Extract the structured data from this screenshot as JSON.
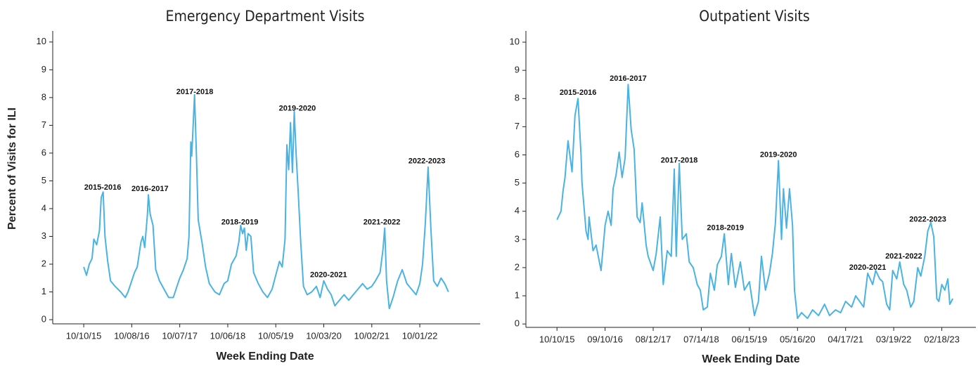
{
  "chart_data": [
    {
      "type": "line",
      "title": "Emergency Department Visits",
      "xlabel": "Week Ending Date",
      "ylabel": "Percent of Visits for ILI",
      "color": "#4ab3e2",
      "x": [
        "10/10/15",
        "10/31/15",
        "11/21/15",
        "12/12/15",
        "12/26/15",
        "01/16/16",
        "02/06/16",
        "02/20/16",
        "03/05/16",
        "03/19/16",
        "04/09/16",
        "04/30/16",
        "06/04/16",
        "07/16/16",
        "08/20/16",
        "09/10/16",
        "10/08/16",
        "10/29/16",
        "11/19/16",
        "12/17/16",
        "12/31/16",
        "01/14/17",
        "02/04/17",
        "02/11/17",
        "02/25/17",
        "03/18/17",
        "04/08/17",
        "05/06/17",
        "06/10/17",
        "07/15/17",
        "08/19/17",
        "09/16/17",
        "10/07/17",
        "11/04/17",
        "12/02/17",
        "12/16/17",
        "12/30/17",
        "01/06/18",
        "01/13/18",
        "01/27/18",
        "02/10/18",
        "02/24/18",
        "03/24/18",
        "04/21/18",
        "05/19/18",
        "06/30/18",
        "08/04/18",
        "09/08/18",
        "10/06/18",
        "11/03/18",
        "12/08/18",
        "12/29/18",
        "01/12/19",
        "01/26/19",
        "02/09/19",
        "02/23/19",
        "03/09/19",
        "03/30/19",
        "04/20/19",
        "05/25/19",
        "06/29/19",
        "08/03/19",
        "09/07/19",
        "10/05/19",
        "11/02/19",
        "11/23/19",
        "12/14/19",
        "12/28/19",
        "01/11/20",
        "01/25/20",
        "02/08/20",
        "02/22/20",
        "03/07/20",
        "03/21/20",
        "04/11/20",
        "05/02/20",
        "05/30/20",
        "07/04/20",
        "08/08/20",
        "09/05/20",
        "10/03/20",
        "10/31/20",
        "11/28/20",
        "12/26/20",
        "01/30/21",
        "03/06/21",
        "04/10/21",
        "05/15/21",
        "06/19/21",
        "07/24/21",
        "08/28/21",
        "10/02/21",
        "10/30/21",
        "12/04/21",
        "12/25/21",
        "01/08/22",
        "01/22/22",
        "02/12/22",
        "03/12/22",
        "04/16/22",
        "05/21/22",
        "06/25/22",
        "07/30/22",
        "09/03/22",
        "10/01/22",
        "10/22/22",
        "11/12/22",
        "12/03/22",
        "12/24/22",
        "01/14/23",
        "02/11/23",
        "03/11/23",
        "04/08/23",
        "05/06/23"
      ],
      "values": [
        1.9,
        1.6,
        2.0,
        2.2,
        2.9,
        2.7,
        3.2,
        4.4,
        4.6,
        3.0,
        2.1,
        1.4,
        1.2,
        1.0,
        0.8,
        1.0,
        1.4,
        1.7,
        1.9,
        2.8,
        3.0,
        2.6,
        3.8,
        4.5,
        3.8,
        3.4,
        1.8,
        1.4,
        1.1,
        0.8,
        0.8,
        1.2,
        1.5,
        1.8,
        2.2,
        3.0,
        6.4,
        5.9,
        6.6,
        8.1,
        6.0,
        3.6,
        2.8,
        1.9,
        1.3,
        1.0,
        0.9,
        1.3,
        1.4,
        2.0,
        2.3,
        2.8,
        3.4,
        3.1,
        3.3,
        2.5,
        3.1,
        3.0,
        1.7,
        1.3,
        1.0,
        0.8,
        1.1,
        1.6,
        2.1,
        1.9,
        2.9,
        6.3,
        5.4,
        7.1,
        5.3,
        7.5,
        6.0,
        4.8,
        2.8,
        1.2,
        0.9,
        1.0,
        1.2,
        0.8,
        1.4,
        1.1,
        0.9,
        0.5,
        0.7,
        0.9,
        0.7,
        0.9,
        1.1,
        1.3,
        1.1,
        1.2,
        1.4,
        1.7,
        2.5,
        3.3,
        1.4,
        0.4,
        0.8,
        1.4,
        1.8,
        1.3,
        1.1,
        0.9,
        1.3,
        2.0,
        3.5,
        5.5,
        3.3,
        1.4,
        1.2,
        1.5,
        1.3,
        1.0
      ],
      "xlim": [
        "02/17/15",
        "01/02/24"
      ],
      "xticks": [
        "10/10/15",
        "10/08/16",
        "10/07/17",
        "10/06/18",
        "10/05/19",
        "10/03/20",
        "10/02/21",
        "10/01/22"
      ],
      "ylim": [
        -0.15,
        10.4
      ],
      "yticks": [
        0,
        1,
        2,
        3,
        4,
        5,
        6,
        7,
        8,
        9,
        10
      ],
      "annotations": [
        {
          "text": "2015-2016",
          "x": "03/02/16",
          "y": 4.75
        },
        {
          "text": "2016-2017",
          "x": "02/23/17",
          "y": 4.7
        },
        {
          "text": "2017-2018",
          "x": "01/29/18",
          "y": 8.2
        },
        {
          "text": "2018-2019",
          "x": "01/05/19",
          "y": 3.5
        },
        {
          "text": "2019-2020",
          "x": "03/17/20",
          "y": 7.6
        },
        {
          "text": "2020-2021",
          "x": "11/08/20",
          "y": 1.6
        },
        {
          "text": "2021-2022",
          "x": "12/17/21",
          "y": 3.5
        },
        {
          "text": "2022-2023",
          "x": "11/23/22",
          "y": 5.7
        }
      ]
    },
    {
      "type": "line",
      "title": "Outpatient Visits",
      "xlabel": "Week Ending Date",
      "color": "#4ab3e2",
      "x": [
        "10/10/15",
        "11/07/15",
        "11/21/15",
        "12/05/15",
        "12/26/15",
        "01/23/16",
        "02/13/16",
        "03/05/16",
        "03/26/16",
        "04/02/16",
        "04/30/16",
        "05/14/16",
        "05/21/16",
        "06/18/16",
        "07/09/16",
        "08/13/16",
        "09/10/16",
        "10/01/16",
        "10/22/16",
        "11/05/16",
        "11/26/16",
        "12/17/16",
        "01/07/17",
        "01/28/17",
        "02/18/17",
        "03/11/17",
        "04/01/17",
        "04/22/17",
        "05/13/17",
        "05/27/17",
        "06/24/17",
        "07/08/17",
        "08/12/17",
        "09/02/17",
        "09/30/17",
        "10/21/17",
        "11/18/17",
        "12/16/17",
        "01/06/18",
        "01/20/18",
        "02/10/18",
        "03/03/18",
        "03/31/18",
        "04/21/18",
        "05/19/18",
        "06/16/18",
        "07/07/18",
        "07/28/18",
        "08/25/18",
        "09/15/18",
        "10/13/18",
        "11/03/18",
        "12/01/18",
        "12/22/18",
        "01/19/19",
        "02/09/19",
        "03/09/19",
        "04/13/19",
        "05/11/19",
        "06/15/19",
        "07/20/19",
        "08/17/19",
        "09/07/19",
        "10/05/19",
        "11/02/19",
        "11/23/19",
        "12/14/19",
        "01/04/20",
        "01/25/20",
        "02/08/20",
        "02/29/20",
        "03/21/20",
        "04/11/20",
        "04/25/20",
        "05/16/20",
        "06/13/20",
        "07/25/20",
        "08/29/20",
        "10/10/20",
        "11/21/20",
        "12/26/20",
        "02/06/21",
        "03/13/21",
        "04/17/21",
        "05/29/21",
        "06/26/21",
        "07/24/21",
        "08/21/21",
        "09/18/21",
        "10/23/21",
        "11/13/21",
        "12/11/21",
        "01/01/22",
        "01/29/22",
        "02/19/22",
        "03/12/22",
        "04/09/22",
        "04/30/22",
        "05/28/22",
        "06/18/22",
        "07/16/22",
        "08/06/22",
        "09/03/22",
        "09/24/22",
        "10/22/22",
        "11/12/22",
        "12/03/22",
        "12/24/22",
        "01/14/23",
        "01/28/23",
        "02/18/23",
        "03/11/23",
        "04/01/23",
        "04/15/23",
        "05/06/23"
      ],
      "values": [
        3.7,
        4.0,
        4.7,
        5.2,
        6.5,
        5.4,
        7.4,
        8.0,
        6.0,
        5.0,
        3.3,
        3.0,
        3.8,
        2.6,
        2.8,
        1.9,
        3.5,
        4.0,
        3.5,
        4.8,
        5.3,
        6.1,
        5.2,
        5.9,
        8.5,
        6.9,
        6.2,
        3.8,
        3.6,
        4.3,
        2.8,
        2.4,
        1.9,
        2.5,
        3.8,
        1.4,
        2.6,
        2.4,
        5.5,
        2.4,
        5.7,
        3.0,
        3.2,
        2.2,
        2.0,
        1.4,
        1.2,
        0.5,
        0.6,
        1.8,
        1.2,
        2.1,
        2.4,
        3.2,
        1.4,
        2.5,
        1.3,
        2.2,
        1.2,
        1.5,
        0.3,
        0.8,
        2.4,
        1.2,
        1.8,
        2.5,
        3.6,
        5.8,
        3.0,
        4.8,
        3.4,
        4.8,
        3.5,
        1.2,
        0.2,
        0.4,
        0.2,
        0.5,
        0.3,
        0.7,
        0.3,
        0.5,
        0.4,
        0.8,
        0.6,
        1.0,
        0.8,
        0.6,
        1.8,
        1.4,
        1.9,
        1.6,
        1.5,
        0.7,
        0.5,
        1.9,
        1.6,
        2.2,
        1.4,
        1.2,
        0.6,
        0.8,
        2.0,
        1.7,
        2.4,
        3.3,
        3.6,
        3.1,
        0.9,
        0.8,
        1.4,
        1.2,
        1.6,
        0.7,
        0.9
      ],
      "xlim": [
        "03/07/15",
        "10/14/23"
      ],
      "xticks": [
        "10/10/15",
        "09/10/16",
        "08/12/17",
        "07/14/18",
        "06/15/19",
        "05/16/20",
        "04/17/21",
        "03/19/22",
        "02/18/23"
      ],
      "ylim": [
        -0.12,
        10.4
      ],
      "yticks": [
        0,
        1,
        2,
        3,
        4,
        5,
        6,
        7,
        8,
        9,
        10
      ],
      "annotations": [
        {
          "text": "2015-2016",
          "x": "03/05/16",
          "y": 8.2
        },
        {
          "text": "2016-2017",
          "x": "02/18/17",
          "y": 8.7
        },
        {
          "text": "2017-2018",
          "x": "02/10/18",
          "y": 5.8
        },
        {
          "text": "2018-2019",
          "x": "12/29/18",
          "y": 3.4
        },
        {
          "text": "2019-2020",
          "x": "01/04/20",
          "y": 6.0
        },
        {
          "text": "2020-2021",
          "x": "09/18/21",
          "y": 2.0
        },
        {
          "text": "2021-2022",
          "x": "05/28/22",
          "y": 2.4
        },
        {
          "text": "2022-2023",
          "x": "11/12/22",
          "y": 3.7
        }
      ]
    }
  ]
}
